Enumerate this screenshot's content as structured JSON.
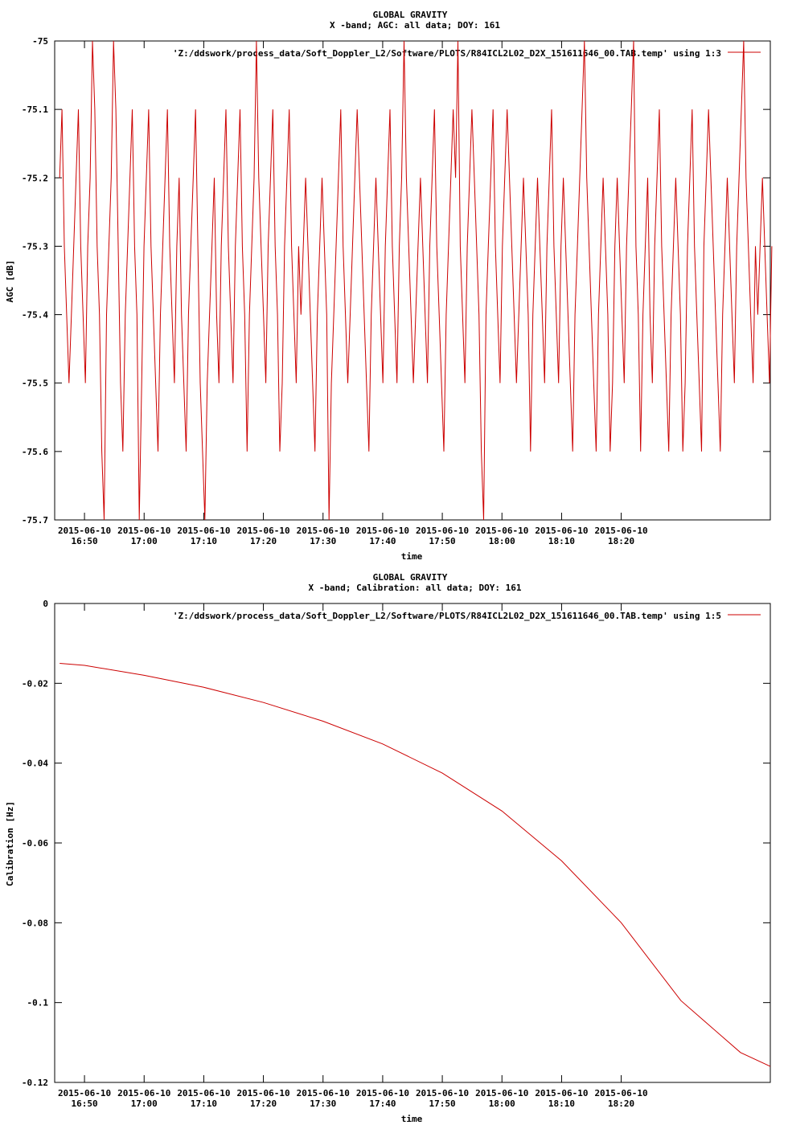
{
  "chart_data": [
    {
      "type": "line",
      "title": "GLOBAL GRAVITY",
      "subtitle": "X -band; AGC: all data; DOY: 161",
      "xlabel": "time",
      "ylabel": "AGC [dB]",
      "ylim": [
        -75.7,
        -75.0
      ],
      "yticks": [
        "-75",
        "-75.1",
        "-75.2",
        "-75.3",
        "-75.4",
        "-75.5",
        "-75.6",
        "-75.7"
      ],
      "ytick_values": [
        -75.0,
        -75.1,
        -75.2,
        -75.3,
        -75.4,
        -75.5,
        -75.6,
        -75.7
      ],
      "xlim_minutes": [
        16.75,
        18.75
      ],
      "xtick_hours": [
        16.8333,
        17.0,
        17.1667,
        17.3333,
        17.5,
        17.6667,
        17.8333,
        18.0,
        18.1667,
        18.3333
      ],
      "xticks_date": [
        "2015-06-10",
        "2015-06-10",
        "2015-06-10",
        "2015-06-10",
        "2015-06-10",
        "2015-06-10",
        "2015-06-10",
        "2015-06-10",
        "2015-06-10",
        "2015-06-10"
      ],
      "xticks_time": [
        "16:50",
        "17:00",
        "17:10",
        "17:20",
        "17:30",
        "17:40",
        "17:50",
        "18:00",
        "18:10",
        "18:20"
      ],
      "grid": false,
      "legend_position": "top-right",
      "series": [
        {
          "name": "'Z:/ddswork/process_data/Soft_Doppler_L2/Software/PLOTS/R84ICL2L02_D2X_151611646_00.TAB.temp' using 1:3",
          "color": "#cc0000",
          "x_start_hour": 16.7639,
          "x_end_hour": 18.7542,
          "y": [
            -75.2,
            -75.1,
            -75.3,
            -75.4,
            -75.5,
            -75.4,
            -75.3,
            -75.2,
            -75.1,
            -75.3,
            -75.4,
            -75.5,
            -75.3,
            -75.2,
            -75.0,
            -75.1,
            -75.3,
            -75.4,
            -75.6,
            -75.7,
            -75.4,
            -75.3,
            -75.2,
            -75.0,
            -75.1,
            -75.3,
            -75.5,
            -75.6,
            -75.4,
            -75.3,
            -75.2,
            -75.1,
            -75.3,
            -75.4,
            -75.7,
            -75.5,
            -75.3,
            -75.2,
            -75.1,
            -75.3,
            -75.4,
            -75.5,
            -75.6,
            -75.4,
            -75.3,
            -75.2,
            -75.1,
            -75.3,
            -75.4,
            -75.5,
            -75.3,
            -75.2,
            -75.4,
            -75.5,
            -75.6,
            -75.4,
            -75.3,
            -75.2,
            -75.1,
            -75.3,
            -75.5,
            -75.6,
            -75.7,
            -75.5,
            -75.4,
            -75.3,
            -75.2,
            -75.4,
            -75.5,
            -75.3,
            -75.2,
            -75.1,
            -75.3,
            -75.4,
            -75.5,
            -75.3,
            -75.2,
            -75.1,
            -75.3,
            -75.4,
            -75.6,
            -75.4,
            -75.3,
            -75.2,
            -75.0,
            -75.2,
            -75.3,
            -75.4,
            -75.5,
            -75.3,
            -75.2,
            -75.1,
            -75.3,
            -75.4,
            -75.6,
            -75.5,
            -75.3,
            -75.2,
            -75.1,
            -75.3,
            -75.4,
            -75.5,
            -75.3,
            -75.4,
            -75.3,
            -75.2,
            -75.3,
            -75.4,
            -75.5,
            -75.6,
            -75.4,
            -75.3,
            -75.2,
            -75.3,
            -75.4,
            -75.7,
            -75.5,
            -75.4,
            -75.3,
            -75.2,
            -75.1,
            -75.3,
            -75.4,
            -75.5,
            -75.4,
            -75.3,
            -75.2,
            -75.1,
            -75.2,
            -75.3,
            -75.4,
            -75.5,
            -75.6,
            -75.4,
            -75.3,
            -75.2,
            -75.3,
            -75.4,
            -75.5,
            -75.3,
            -75.2,
            -75.1,
            -75.3,
            -75.4,
            -75.5,
            -75.3,
            -75.2,
            -75.0,
            -75.2,
            -75.3,
            -75.4,
            -75.5,
            -75.4,
            -75.3,
            -75.2,
            -75.3,
            -75.4,
            -75.5,
            -75.3,
            -75.2,
            -75.1,
            -75.3,
            -75.4,
            -75.5,
            -75.6,
            -75.4,
            -75.3,
            -75.2,
            -75.1,
            -75.2,
            -75.0,
            -75.3,
            -75.4,
            -75.5,
            -75.3,
            -75.2,
            -75.1,
            -75.2,
            -75.3,
            -75.4,
            -75.6,
            -75.7,
            -75.4,
            -75.3,
            -75.2,
            -75.1,
            -75.3,
            -75.4,
            -75.5,
            -75.3,
            -75.2,
            -75.1,
            -75.2,
            -75.3,
            -75.4,
            -75.5,
            -75.4,
            -75.3,
            -75.2,
            -75.3,
            -75.4,
            -75.6,
            -75.4,
            -75.3,
            -75.2,
            -75.3,
            -75.4,
            -75.5,
            -75.3,
            -75.2,
            -75.1,
            -75.3,
            -75.4,
            -75.5,
            -75.3,
            -75.2,
            -75.3,
            -75.4,
            -75.5,
            -75.6,
            -75.4,
            -75.3,
            -75.2,
            -75.1,
            -75.0,
            -75.2,
            -75.3,
            -75.4,
            -75.5,
            -75.6,
            -75.4,
            -75.3,
            -75.2,
            -75.3,
            -75.4,
            -75.6,
            -75.5,
            -75.3,
            -75.2,
            -75.3,
            -75.4,
            -75.5,
            -75.3,
            -75.2,
            -75.1,
            -75.0,
            -75.3,
            -75.4,
            -75.6,
            -75.4,
            -75.3,
            -75.2,
            -75.4,
            -75.5,
            -75.3,
            -75.2,
            -75.1,
            -75.3,
            -75.4,
            -75.5,
            -75.6,
            -75.4,
            -75.3,
            -75.2,
            -75.3,
            -75.4,
            -75.6,
            -75.5,
            -75.3,
            -75.2,
            -75.1,
            -75.3,
            -75.4,
            -75.5,
            -75.6,
            -75.3,
            -75.2,
            -75.1,
            -75.2,
            -75.3,
            -75.4,
            -75.5,
            -75.6,
            -75.4,
            -75.3,
            -75.2,
            -75.3,
            -75.4,
            -75.5,
            -75.3,
            -75.2,
            -75.1,
            -75.0,
            -75.2,
            -75.3,
            -75.4,
            -75.5,
            -75.3,
            -75.4,
            -75.3,
            -75.2,
            -75.3,
            -75.4,
            -75.5,
            -75.3
          ]
        }
      ]
    },
    {
      "type": "line",
      "title": "GLOBAL GRAVITY",
      "subtitle": "X -band; Calibration: all data; DOY: 161",
      "xlabel": "time",
      "ylabel": "Calibration [Hz]",
      "ylim": [
        -0.12,
        0.0
      ],
      "yticks": [
        "0",
        "-0.02",
        "-0.04",
        "-0.06",
        "-0.08",
        "-0.1",
        "-0.12"
      ],
      "ytick_values": [
        0.0,
        -0.02,
        -0.04,
        -0.06,
        -0.08,
        -0.1,
        -0.12
      ],
      "xlim_minutes": [
        16.75,
        18.75
      ],
      "xtick_hours": [
        16.8333,
        17.0,
        17.1667,
        17.3333,
        17.5,
        17.6667,
        17.8333,
        18.0,
        18.1667,
        18.3333
      ],
      "xticks_date": [
        "2015-06-10",
        "2015-06-10",
        "2015-06-10",
        "2015-06-10",
        "2015-06-10",
        "2015-06-10",
        "2015-06-10",
        "2015-06-10",
        "2015-06-10",
        "2015-06-10"
      ],
      "xticks_time": [
        "16:50",
        "17:00",
        "17:10",
        "17:20",
        "17:30",
        "17:40",
        "17:50",
        "18:00",
        "18:10",
        "18:20"
      ],
      "grid": false,
      "legend_position": "top-right",
      "series": [
        {
          "name": "'Z:/ddswork/process_data/Soft_Doppler_L2/Software/PLOTS/R84ICL2L02_D2X_151611646_00.TAB.temp' using 1:5",
          "color": "#cc0000",
          "x_hours": [
            16.7639,
            16.8333,
            17.0,
            17.1667,
            17.3333,
            17.5,
            17.6667,
            17.8333,
            18.0,
            18.1667,
            18.3333,
            18.5,
            18.6667,
            18.75
          ],
          "y": [
            -0.015,
            -0.0155,
            -0.018,
            -0.021,
            -0.0248,
            -0.0295,
            -0.0352,
            -0.0425,
            -0.052,
            -0.0645,
            -0.08,
            -0.0995,
            -0.1125,
            -0.116
          ]
        }
      ]
    }
  ]
}
